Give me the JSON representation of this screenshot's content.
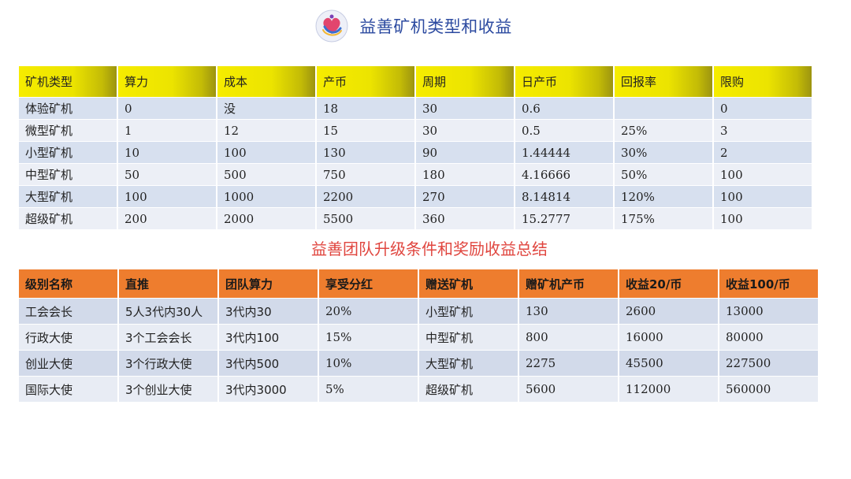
{
  "header": {
    "title": "益善矿机类型和收益"
  },
  "miner_table": {
    "columns": [
      "矿机类型",
      "算力",
      "成本",
      "产币",
      "周期",
      "日产币",
      "回报率",
      "限购"
    ],
    "rows": [
      [
        "体验矿机",
        "0",
        "没",
        "18",
        "30",
        "0.6",
        "",
        "0"
      ],
      [
        "微型矿机",
        "1",
        "12",
        "15",
        "30",
        "0.5",
        "25%",
        "3"
      ],
      [
        "小型矿机",
        "10",
        "100",
        "130",
        "90",
        "1.44444",
        "30%",
        "2"
      ],
      [
        "中型矿机",
        "50",
        "500",
        "750",
        "180",
        "4.16666",
        "50%",
        "100"
      ],
      [
        "大型矿机",
        "100",
        "1000",
        "2200",
        "270",
        "8.14814",
        "120%",
        "100"
      ],
      [
        "超级矿机",
        "200",
        "2000",
        "5500",
        "360",
        "15.2777",
        "175%",
        "100"
      ]
    ]
  },
  "team_section": {
    "title": "益善团队升级条件和奖励收益总结"
  },
  "team_table": {
    "columns": [
      "级别名称",
      "直推",
      "团队算力",
      "享受分红",
      "赠送矿机",
      "赠矿机产币",
      "收益20/币",
      "收益100/币"
    ],
    "rows": [
      [
        "工会会长",
        "5人3代内30人",
        "3代内30",
        "20%",
        "小型矿机",
        "130",
        "2600",
        "13000"
      ],
      [
        "行政大使",
        "3个工会会长",
        "3代内100",
        "15%",
        "中型矿机",
        "800",
        "16000",
        "80000"
      ],
      [
        "创业大使",
        "3个行政大使",
        "3代内500",
        "10%",
        "大型矿机",
        "2275",
        "45500",
        "227500"
      ],
      [
        "国际大使",
        "3个创业大使",
        "3代内3000",
        "5%",
        "超级矿机",
        "5600",
        "112000",
        "560000"
      ]
    ]
  },
  "colors": {
    "title": "#2c4aa0",
    "subtitle": "#e0463f",
    "miner_header": "#f6ec00",
    "team_header": "#ee7d2e",
    "row_blue": "#d7e0ef",
    "row_light": "#eceff6"
  },
  "icons": {
    "logo": "heart-hands-logo"
  }
}
